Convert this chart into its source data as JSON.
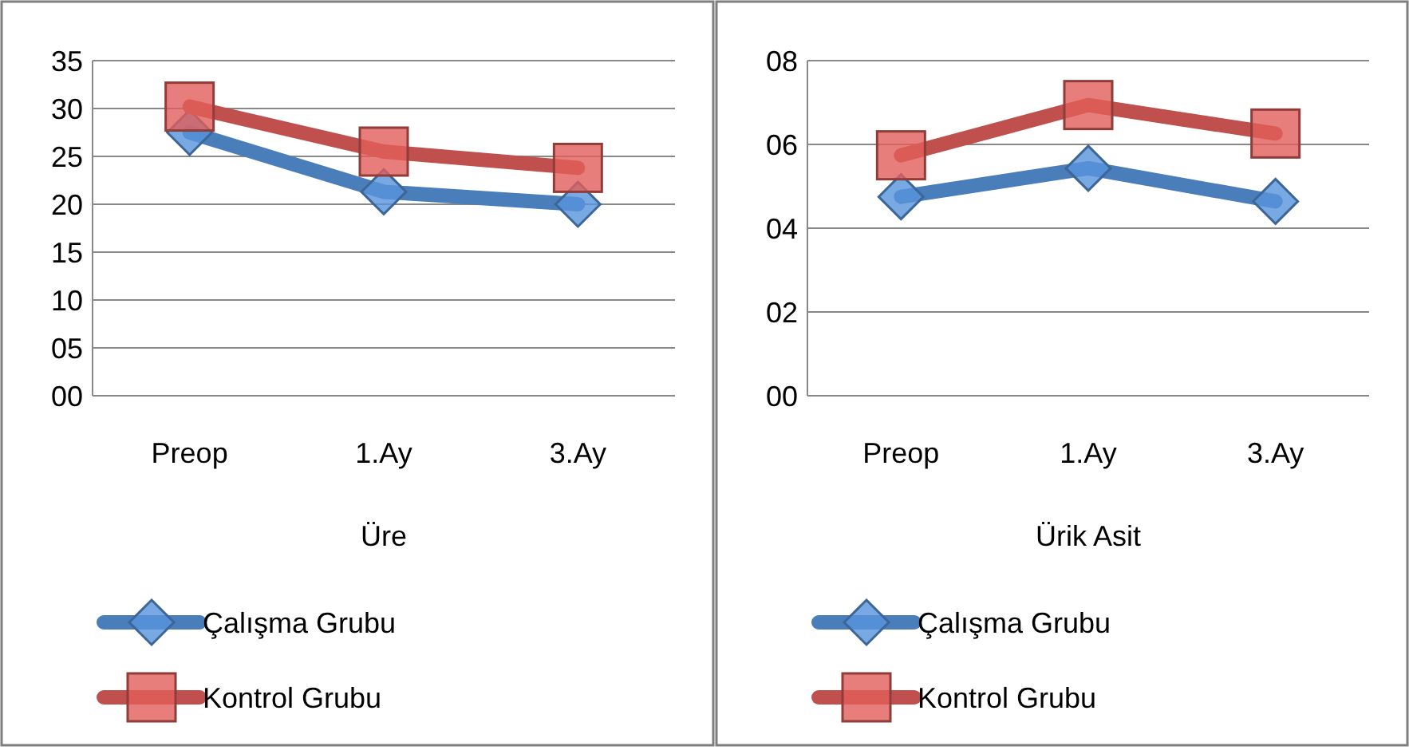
{
  "chart_data": [
    {
      "type": "line",
      "xlabel": "Üre",
      "categories": [
        "Preop",
        "1.Ay",
        "3.Ay"
      ],
      "ylim": [
        0,
        35
      ],
      "yticks": [
        {
          "value": 0,
          "label": "00"
        },
        {
          "value": 5,
          "label": "05"
        },
        10,
        15,
        20,
        25,
        30,
        35
      ],
      "grid": "y",
      "legend": "bottom",
      "series": [
        {
          "name": "Çalışma Grubu",
          "color": "#4a7ebb",
          "marker": "diamond",
          "values": [
            27.5,
            21.3,
            20
          ]
        },
        {
          "name": "Kontrol Grubu",
          "color": "#c0504d",
          "marker": "square",
          "values": [
            30.2,
            25.5,
            23.8
          ]
        }
      ]
    },
    {
      "type": "line",
      "xlabel": "Ürik Asit",
      "categories": [
        "Preop",
        "1.Ay",
        "3.Ay"
      ],
      "ylim": [
        0,
        8
      ],
      "yticks": [
        {
          "value": 0,
          "label": "00"
        },
        {
          "value": 2,
          "label": "02"
        },
        {
          "value": 4,
          "label": "04"
        },
        {
          "value": 6,
          "label": "06"
        },
        {
          "value": 8,
          "label": "08"
        }
      ],
      "grid": "y",
      "legend": "bottom",
      "series": [
        {
          "name": "Çalışma Grubu",
          "color": "#4a7ebb",
          "marker": "diamond",
          "values": [
            4.75,
            5.43,
            4.64
          ]
        },
        {
          "name": "Kontrol Grubu",
          "color": "#c0504d",
          "marker": "square",
          "values": [
            5.74,
            6.94,
            6.26
          ]
        }
      ]
    }
  ]
}
